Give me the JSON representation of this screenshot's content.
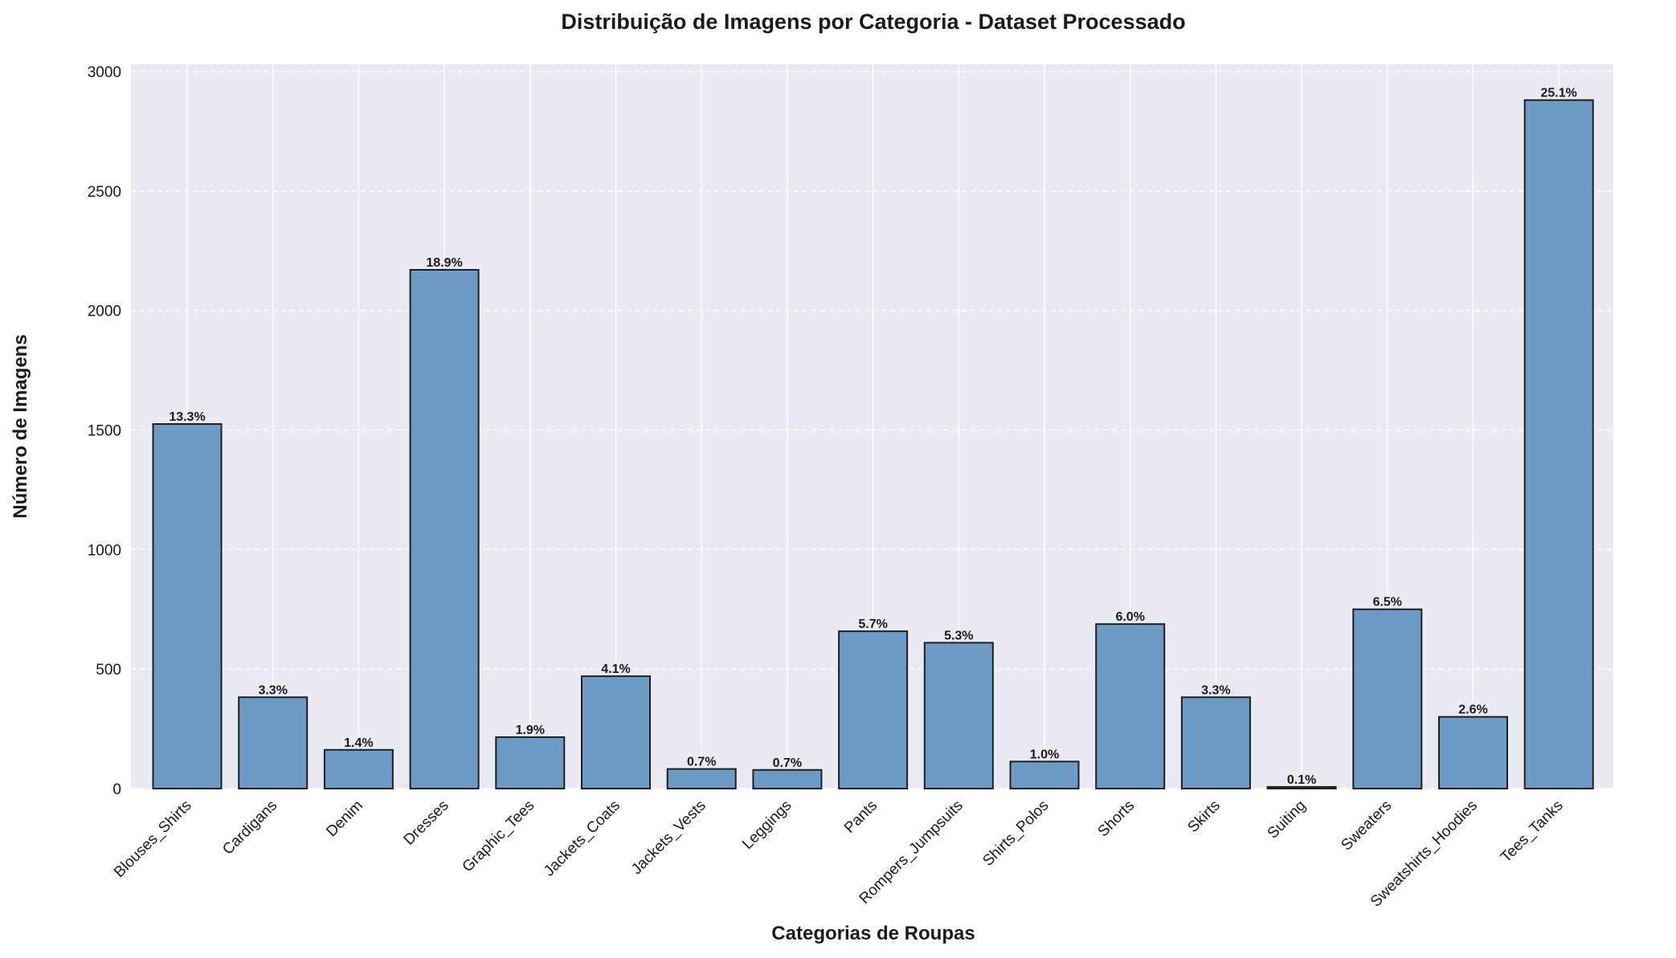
{
  "chart_data": {
    "type": "bar",
    "title": "Distribuição de Imagens por Categoria - Dataset Processado",
    "xlabel": "Categorias de Roupas",
    "ylabel": "Número de Imagens",
    "ylim": [
      0,
      3030
    ],
    "yticks": [
      0,
      500,
      1000,
      1500,
      2000,
      2500,
      3000
    ],
    "grid": true,
    "categories": [
      "Blouses_Shirts",
      "Cardigans",
      "Denim",
      "Dresses",
      "Graphic_Tees",
      "Jackets_Coats",
      "Jackets_Vests",
      "Leggings",
      "Pants",
      "Rompers_Jumpsuits",
      "Shirts_Polos",
      "Shorts",
      "Skirts",
      "Suiting",
      "Sweaters",
      "Sweatshirts_Hoodies",
      "Tees_Tanks"
    ],
    "values": [
      1525,
      382,
      162,
      2170,
      215,
      470,
      82,
      78,
      658,
      610,
      113,
      688,
      382,
      7,
      750,
      300,
      2880
    ],
    "data_labels": [
      "13.3%",
      "3.3%",
      "1.4%",
      "18.9%",
      "1.9%",
      "4.1%",
      "0.7%",
      "0.7%",
      "5.7%",
      "5.3%",
      "1.0%",
      "6.0%",
      "3.3%",
      "0.1%",
      "6.5%",
      "2.6%",
      "25.1%"
    ],
    "colors": {
      "bar": "#6c9bc5",
      "bar_edge": "#1f1f1f",
      "plot_background": "#eaeaf2",
      "grid": "#ffffff"
    }
  }
}
